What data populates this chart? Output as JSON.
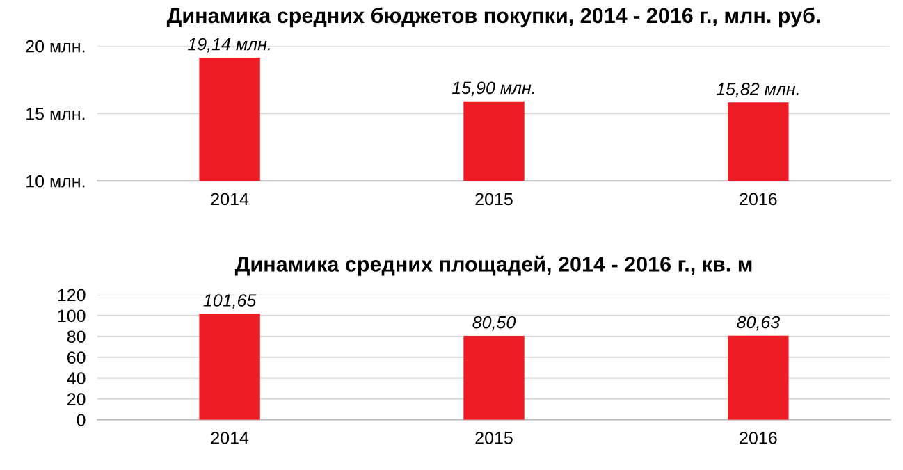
{
  "chart_data": [
    {
      "type": "bar",
      "title": "Динамика средних бюджетов покупки, 2014 - 2016 г., млн. руб.",
      "categories": [
        "2014",
        "2015",
        "2016"
      ],
      "values": [
        19.14,
        15.9,
        15.82
      ],
      "value_labels": [
        "19,14 млн.",
        "15,90 млн.",
        "15,82 млн."
      ],
      "color": "#ee1c25",
      "ylim": [
        10,
        20
      ],
      "yticks": [
        {
          "value": 10,
          "label": "10 млн."
        },
        {
          "value": 15,
          "label": "15 млн."
        },
        {
          "value": 20,
          "label": "20 млн."
        }
      ],
      "grid": "y",
      "legend": false
    },
    {
      "type": "bar",
      "title": "Динамика средних площадей, 2014 - 2016 г., кв. м",
      "categories": [
        "2014",
        "2015",
        "2016"
      ],
      "values": [
        101.65,
        80.5,
        80.63
      ],
      "value_labels": [
        "101,65",
        "80,50",
        "80,63"
      ],
      "color": "#ee1c25",
      "ylim": [
        0,
        120
      ],
      "yticks": [
        0,
        20,
        40,
        60,
        80,
        100,
        120
      ],
      "grid": "y",
      "legend": false
    }
  ]
}
